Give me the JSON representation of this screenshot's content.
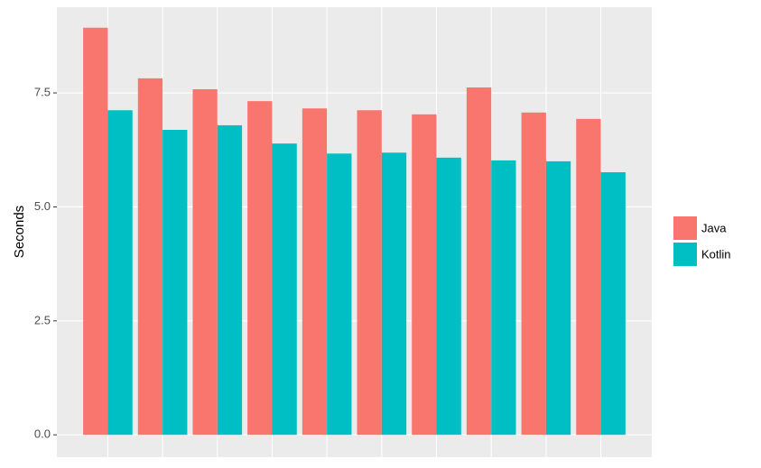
{
  "chart_data": {
    "type": "bar",
    "y_label": "Seconds",
    "categories": [
      null,
      null,
      null,
      null,
      null,
      null,
      null,
      null,
      null,
      null
    ],
    "series": [
      {
        "name": "Java",
        "color": "#f8766d",
        "values": [
          8.93,
          7.82,
          7.58,
          7.32,
          7.16,
          7.12,
          7.03,
          7.62,
          7.07,
          6.93
        ]
      },
      {
        "name": "Kotlin",
        "color": "#00bfc4",
        "values": [
          7.12,
          6.69,
          6.79,
          6.39,
          6.17,
          6.19,
          6.08,
          6.02,
          6.0,
          5.76
        ]
      }
    ],
    "ylim": [
      -0.49,
      9.38
    ],
    "yticks": [
      {
        "value": 0,
        "label": "0.0"
      },
      {
        "value": 2.5,
        "label": "2.5"
      },
      {
        "value": 5,
        "label": "5.0"
      },
      {
        "value": 7.5,
        "label": "7.5"
      }
    ],
    "grid": true,
    "legend": "right"
  }
}
